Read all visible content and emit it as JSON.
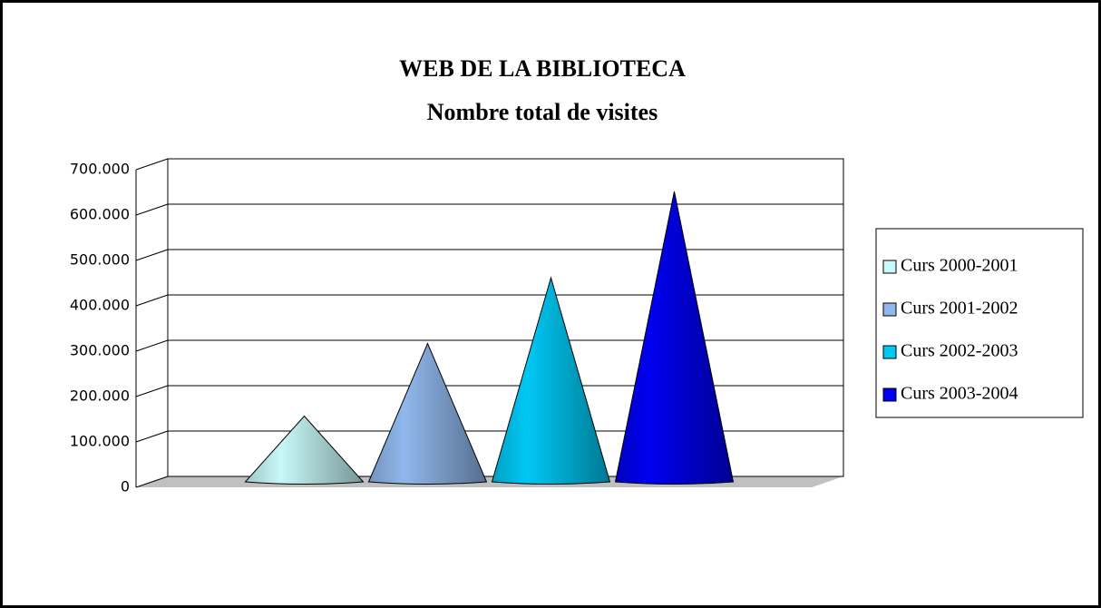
{
  "chart_data": {
    "type": "cone3d",
    "title": "WEB DE LA BIBLIOTECA",
    "subtitle": "Nombre total de visites",
    "categories": [
      null
    ],
    "series": [
      {
        "name": "Curs 2000-2001",
        "color": "#c8f8f8",
        "values": [
          145000
        ]
      },
      {
        "name": "Curs 2001-2002",
        "color": "#90b8ec",
        "values": [
          305000
        ]
      },
      {
        "name": "Curs 2002-2003",
        "color": "#00c8f4",
        "values": [
          450000
        ]
      },
      {
        "name": "Curs 2003-2004",
        "color": "#0000f0",
        "values": [
          640000
        ]
      }
    ],
    "ylim": [
      0,
      700000
    ],
    "yticks": [
      0,
      {
        "value": 100000,
        "label": "100.000"
      },
      {
        "value": 200000,
        "label": "200.000"
      },
      {
        "value": 300000,
        "label": "300.000"
      },
      {
        "value": 400000,
        "label": "400.000"
      },
      {
        "value": 500000,
        "label": "500.000"
      },
      {
        "value": 600000,
        "label": "600.000"
      },
      {
        "value": 700000,
        "label": "700.000"
      }
    ],
    "grid": true,
    "legend": "right"
  }
}
